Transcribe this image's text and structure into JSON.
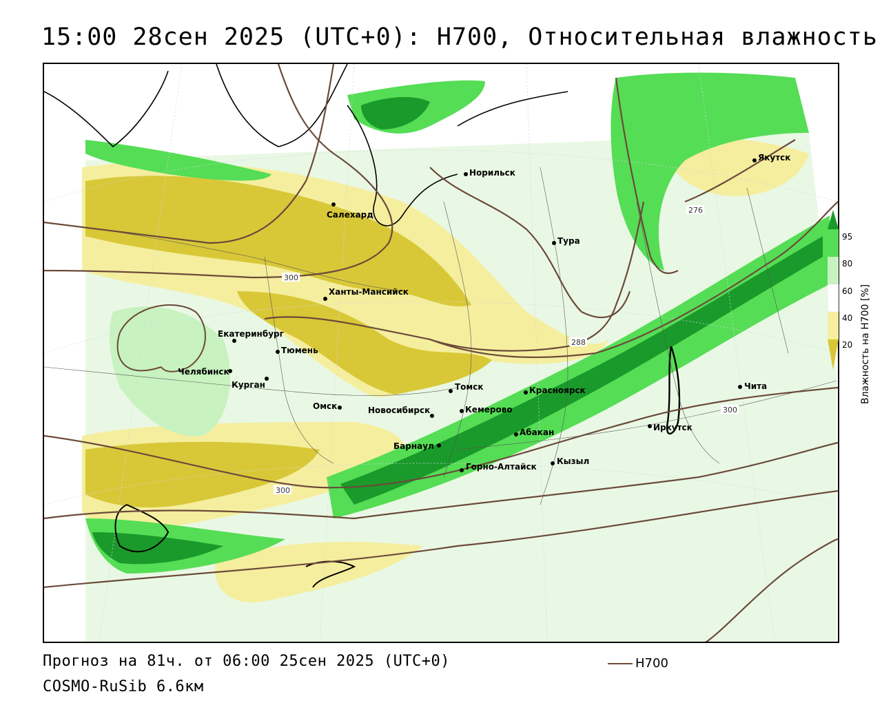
{
  "title": "15:00 28сен 2025 (UTC+0): H700, Относительная влажность",
  "forecast_text": "Прогноз на 81ч. от 06:00 25сен 2025 (UTC+0)",
  "model_text": "COSMO-RuSib 6.6км",
  "legend": {
    "label": "H700",
    "color": "#6b4a3a"
  },
  "colorbar": {
    "title": "Влажность на H700 [%]",
    "ticks": [
      "95",
      "80",
      "60",
      "40",
      "20"
    ],
    "colors": {
      "very_dry": "#d8c838",
      "dry": "#f5ee9e",
      "neutral": "#ffffff",
      "moist": "#c8f2c0",
      "wet": "#55dd55",
      "very_wet": "#1a9a2a"
    }
  },
  "cities": [
    {
      "name": "Салехард"
    },
    {
      "name": "Норильск"
    },
    {
      "name": "Якутск"
    },
    {
      "name": "Тура"
    },
    {
      "name": "Ханты-Мансийск"
    },
    {
      "name": "Екатеринбург"
    },
    {
      "name": "Тюмень"
    },
    {
      "name": "Челябинск"
    },
    {
      "name": "Курган"
    },
    {
      "name": "Омск"
    },
    {
      "name": "Новосибирск"
    },
    {
      "name": "Томск"
    },
    {
      "name": "Кемерово"
    },
    {
      "name": "Красноярск"
    },
    {
      "name": "Барнаул"
    },
    {
      "name": "Абакан"
    },
    {
      "name": "Иркутск"
    },
    {
      "name": "Чита"
    },
    {
      "name": "Горно-Алтайск"
    },
    {
      "name": "Кызыл"
    }
  ],
  "isoline_labels": [
    "300",
    "288",
    "276",
    "300",
    "300"
  ]
}
